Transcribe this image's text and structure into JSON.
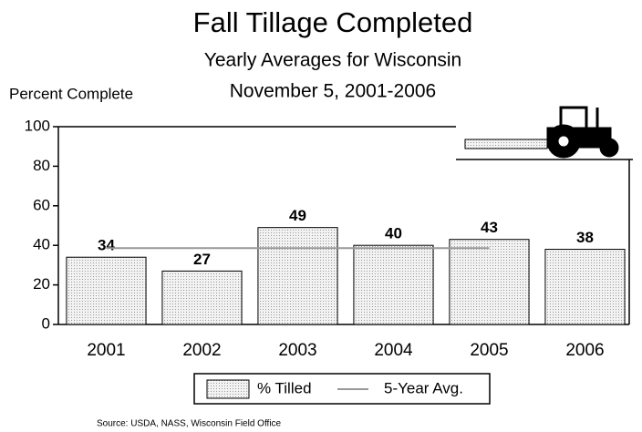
{
  "chart_data": {
    "type": "bar",
    "title": "Fall Tillage Completed",
    "subtitle": [
      "Yearly Averages for Wisconsin",
      "November 5, 2001-2006"
    ],
    "y_label": "Percent Complete",
    "categories": [
      "2001",
      "2002",
      "2003",
      "2004",
      "2005",
      "2006"
    ],
    "series": [
      {
        "name": "% Tilled",
        "color": "#e4e4e4",
        "values": [
          34,
          27,
          49,
          40,
          43,
          38
        ]
      },
      {
        "name": "5-Year Avg.",
        "type": "line",
        "color": "#999999",
        "values": [
          38.6,
          38.6,
          38.6,
          38.6,
          38.6,
          null
        ]
      }
    ],
    "ylim": [
      0,
      100
    ],
    "yticks": [
      0,
      20,
      40,
      60,
      80,
      100
    ],
    "grid": false,
    "legend": "bottom",
    "source": "Source: USDA, NASS, Wisconsin Field Office"
  }
}
